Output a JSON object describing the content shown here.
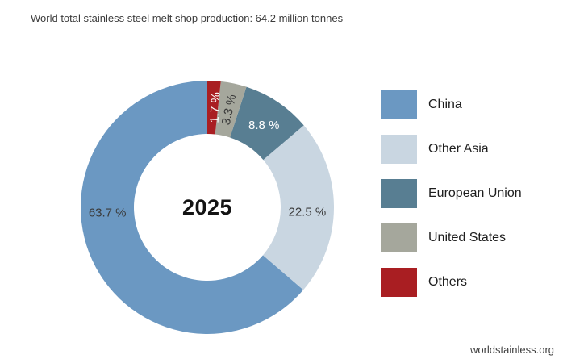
{
  "footer": {
    "credit": "worldstainless.org"
  },
  "chart_data": {
    "type": "pie",
    "subtype": "donut",
    "title": "World total stainless steel melt shop production: 64.2 million tonnes",
    "total": "64.2 million tonnes",
    "center_label": "2025",
    "unit": "%",
    "legend_position": "right",
    "grid": false,
    "start_angle_deg": 0,
    "direction": "counterclockwise",
    "outer_radius": 157,
    "inner_radius": 91,
    "label_radius": 124,
    "categories": [
      "China",
      "Other Asia",
      "European Union",
      "United States",
      "Others"
    ],
    "values": [
      63.7,
      22.5,
      8.8,
      3.3,
      1.7
    ],
    "segments": [
      {
        "name": "China",
        "value": 63.7,
        "label": "63.7 %",
        "color": "#6b98c2",
        "label_color": "#3a3a3a",
        "label_angle": 267,
        "label_rotation": 0
      },
      {
        "name": "Other Asia",
        "value": 22.5,
        "label": "22.5 %",
        "color": "#c9d6e1",
        "label_color": "#3a3a3a",
        "label_angle": 92.5,
        "label_rotation": 0
      },
      {
        "name": "European Union",
        "value": 8.8,
        "label": "8.8 %",
        "color": "#587e92",
        "label_color": "#ffffff",
        "label_angle": 34.5,
        "label_rotation": 0
      },
      {
        "name": "United States",
        "value": 3.3,
        "label": "3.3 %",
        "color": "#a5a79c",
        "label_color": "#3a3a3a",
        "label_angle": 12.3,
        "label_rotation": -78
      },
      {
        "name": "Others",
        "value": 1.7,
        "label": "1.7 %",
        "color": "#a91e22",
        "label_color": "#ffffff",
        "label_angle": 4.3,
        "label_rotation": -87
      }
    ]
  }
}
